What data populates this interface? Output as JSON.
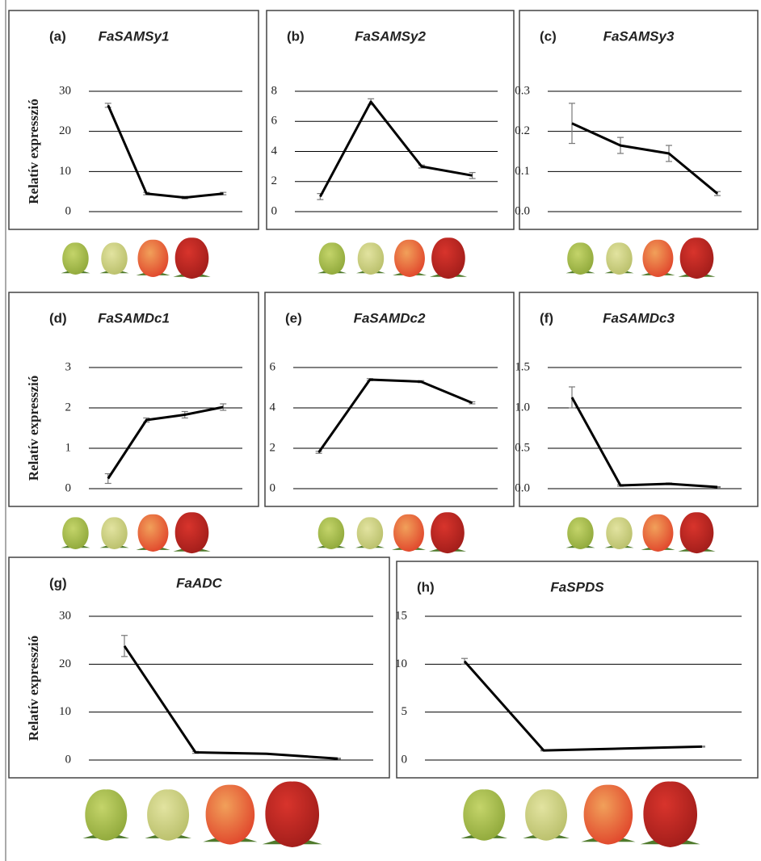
{
  "chart_data": [
    {
      "type": "line",
      "label": "(a)",
      "title": "FaSAMSy1",
      "y_label": "Relatív expresszió",
      "categories": [
        null,
        null,
        null,
        null
      ],
      "values": [
        26.5,
        4.5,
        3.5,
        4.5
      ],
      "errors": [
        0.5,
        0.3,
        0.3,
        0.3
      ],
      "color": "#000000",
      "ylim": [
        0,
        30
      ],
      "yticks": [
        0,
        10,
        20,
        30
      ],
      "grid": true
    },
    {
      "type": "line",
      "label": "(b)",
      "title": "FaSAMSy2",
      "categories": [
        null,
        null,
        null,
        null
      ],
      "values": [
        1.0,
        7.3,
        3.0,
        2.4
      ],
      "errors": [
        0.2,
        0.2,
        0.1,
        0.2
      ],
      "color": "#000000",
      "ylim": [
        0,
        8
      ],
      "yticks": [
        0,
        2,
        4,
        6,
        8
      ],
      "grid": true
    },
    {
      "type": "line",
      "label": "(c)",
      "title": "FaSAMSy3",
      "categories": [
        null,
        null,
        null,
        null
      ],
      "values": [
        0.22,
        0.165,
        0.145,
        0.045
      ],
      "errors": [
        0.05,
        0.02,
        0.02,
        0.005
      ],
      "color": "#000000",
      "ylim": [
        0,
        0.3
      ],
      "yticks": [
        {
          "value": 0,
          "label": "0.0"
        },
        0.1,
        0.2,
        0.3
      ],
      "grid": true
    },
    {
      "type": "line",
      "label": "(d)",
      "title": "FaSAMDc1",
      "y_label": "Relatív expresszió",
      "categories": [
        null,
        null,
        null,
        null
      ],
      "values": [
        0.25,
        1.7,
        1.83,
        2.02
      ],
      "errors": [
        0.12,
        0.05,
        0.08,
        0.08
      ],
      "color": "#000000",
      "ylim": [
        0,
        3
      ],
      "yticks": [
        0,
        1,
        2,
        3
      ],
      "grid": true
    },
    {
      "type": "line",
      "label": "(e)",
      "title": "FaSAMDc2",
      "categories": [
        null,
        null,
        null,
        null
      ],
      "values": [
        1.8,
        5.4,
        5.3,
        4.25
      ],
      "errors": [
        0.05,
        0.05,
        0.05,
        0.05
      ],
      "color": "#000000",
      "ylim": [
        0,
        6
      ],
      "yticks": [
        0,
        2,
        4,
        6
      ],
      "grid": true
    },
    {
      "type": "line",
      "label": "(f)",
      "title": "FaSAMDc3",
      "categories": [
        null,
        null,
        null,
        null
      ],
      "values": [
        1.13,
        0.04,
        0.06,
        0.02
      ],
      "errors": [
        0.13,
        0.01,
        0.01,
        0.005
      ],
      "color": "#000000",
      "ylim": [
        0,
        1.5
      ],
      "yticks": [
        {
          "value": 0,
          "label": "0.0"
        },
        0.5,
        {
          "value": 1,
          "label": "1.0"
        },
        1.5
      ],
      "grid": true
    },
    {
      "type": "line",
      "label": "(g)",
      "title": "FaADC",
      "y_label": "Relatív expresszió",
      "categories": [
        null,
        null,
        null,
        null
      ],
      "values": [
        23.8,
        1.6,
        1.3,
        0.3
      ],
      "errors": [
        2.2,
        0.2,
        0.1,
        0.1
      ],
      "color": "#000000",
      "ylim": [
        0,
        30
      ],
      "yticks": [
        0,
        10,
        20,
        30
      ],
      "grid": true
    },
    {
      "type": "line",
      "label": "(h)",
      "title": "FaSPDS",
      "categories": [
        null,
        null,
        null,
        null
      ],
      "values": [
        10.3,
        1.0,
        1.2,
        1.4
      ],
      "errors": [
        0.3,
        0.05,
        0.05,
        0.05
      ],
      "color": "#000000",
      "ylim": [
        0,
        15
      ],
      "yticks": [
        0,
        5,
        10,
        15
      ],
      "grid": true
    }
  ]
}
